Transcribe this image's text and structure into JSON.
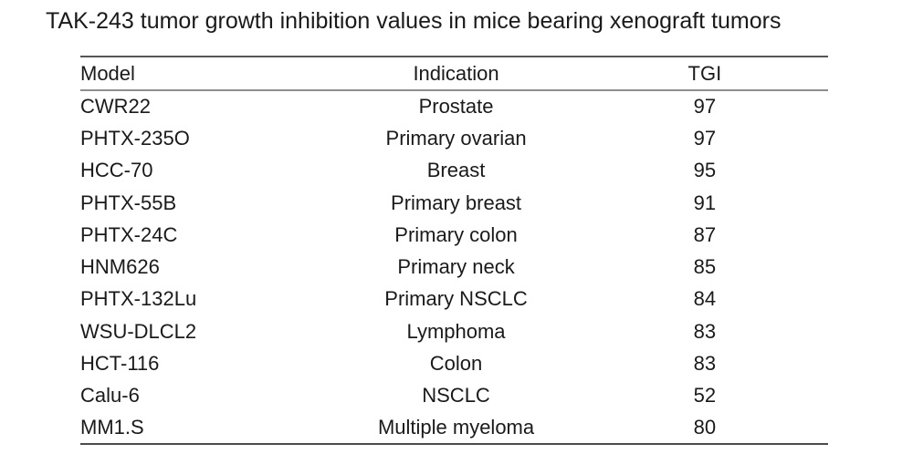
{
  "title": "TAK-243 tumor growth inhibition values in mice bearing xenograft tumors",
  "colors": {
    "background": "#ffffff",
    "text": "#1a1a1a",
    "rule_top": "#565656",
    "rule_header": "#8e8e8e",
    "rule_bottom": "#4b4b4b"
  },
  "chart_data": {
    "type": "table",
    "title": "TAK-243 tumor growth inhibition values in mice bearing xenograft tumors",
    "columns": [
      "Model",
      "Indication",
      "TGI"
    ],
    "rows": [
      [
        "CWR22",
        "Prostate",
        "97"
      ],
      [
        "PHTX-235O",
        "Primary ovarian",
        "97"
      ],
      [
        "HCC-70",
        "Breast",
        "95"
      ],
      [
        "PHTX-55B",
        "Primary breast",
        "91"
      ],
      [
        "PHTX-24C",
        "Primary colon",
        "87"
      ],
      [
        "HNM626",
        "Primary neck",
        "85"
      ],
      [
        "PHTX-132Lu",
        "Primary NSCLC",
        "84"
      ],
      [
        "WSU-DLCL2",
        "Lymphoma",
        "83"
      ],
      [
        "HCT-116",
        "Colon",
        "83"
      ],
      [
        "Calu-6",
        "NSCLC",
        "52"
      ],
      [
        "MM1.S",
        "Multiple myeloma",
        "80"
      ]
    ]
  }
}
